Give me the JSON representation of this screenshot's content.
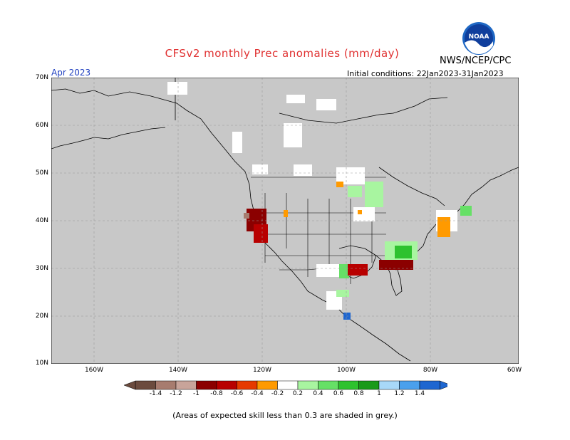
{
  "title": "CFSv2 monthly Prec anomalies (mm/day)",
  "agency": "NWS/NCEP/CPC",
  "logo_text": "NOAA",
  "month": "Apr 2023",
  "initial_conditions": "Initial conditions: 22Jan2023-31Jan2023",
  "lat_labels": [
    "70N",
    "60N",
    "50N",
    "40N",
    "30N",
    "20N",
    "10N"
  ],
  "lon_labels": [
    "160W",
    "140W",
    "120W",
    "100W",
    "80W",
    "60W"
  ],
  "colorbar": {
    "labels": [
      "-1.4",
      "-1.2",
      "-1",
      "-0.8",
      "-0.6",
      "-0.4",
      "-0.2",
      "0.2",
      "0.4",
      "0.6",
      "0.8",
      "1",
      "1.2",
      "1.4"
    ],
    "colors": [
      "#6b4b3e",
      "#a77c6f",
      "#c8a49a",
      "#8b0000",
      "#b80000",
      "#e63a00",
      "#ff9a00",
      "#ffffff",
      "#a8f5a0",
      "#66e066",
      "#2ec22e",
      "#1a9a1a",
      "#a8d8f8",
      "#4aa0ec",
      "#1e66d0"
    ]
  },
  "colors": {
    "skill_grey": "#c8c8c8",
    "title_red": "#e03030",
    "month_blue": "#2040c0"
  },
  "footnote": "(Areas of expected skill less than 0.3 are shaded in grey.)"
}
